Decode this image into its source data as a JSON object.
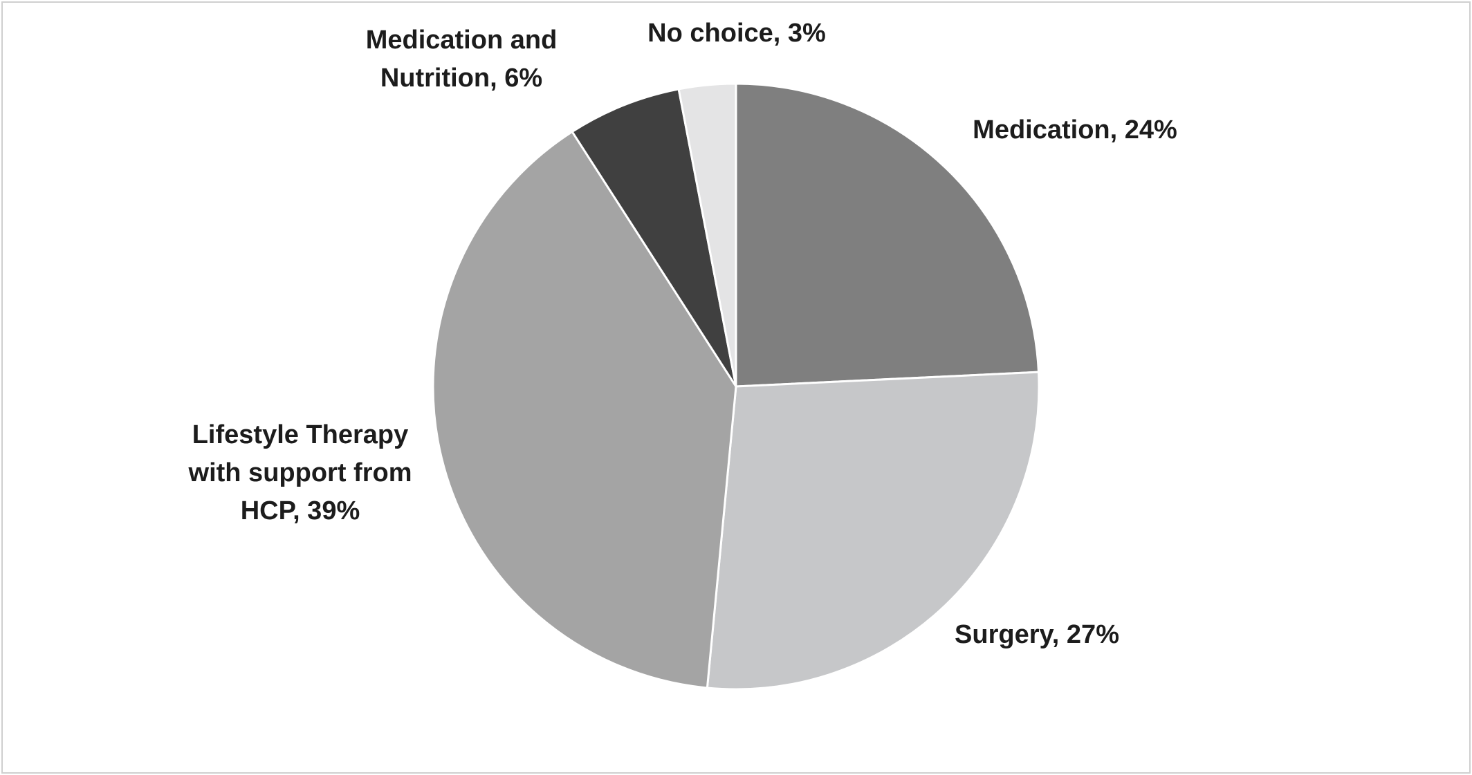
{
  "chart_data": {
    "type": "pie",
    "title": "",
    "start_angle_deg": 0,
    "direction": "clockwise",
    "slices": [
      {
        "label": "Medication",
        "value": 24,
        "color": "#7f7f7f",
        "label_lines": [
          "Medication, 24%"
        ]
      },
      {
        "label": "Surgery",
        "value": 27,
        "color": "#c6c7c9",
        "label_lines": [
          "Surgery, 27%"
        ]
      },
      {
        "label": "Lifestyle Therapy with support from HCP",
        "value": 39,
        "color": "#a4a4a4",
        "label_lines": [
          "Lifestyle Therapy",
          "with support from",
          "HCP, 39%"
        ]
      },
      {
        "label": "Medication and Nutrition",
        "value": 6,
        "color": "#404040",
        "label_lines": [
          "Medication and",
          "Nutrition, 6%"
        ]
      },
      {
        "label": "No choice",
        "value": 3,
        "color": "#e4e4e5",
        "label_lines": [
          "No choice, 3%"
        ]
      }
    ],
    "legend": "none",
    "data_labels": "outside"
  }
}
